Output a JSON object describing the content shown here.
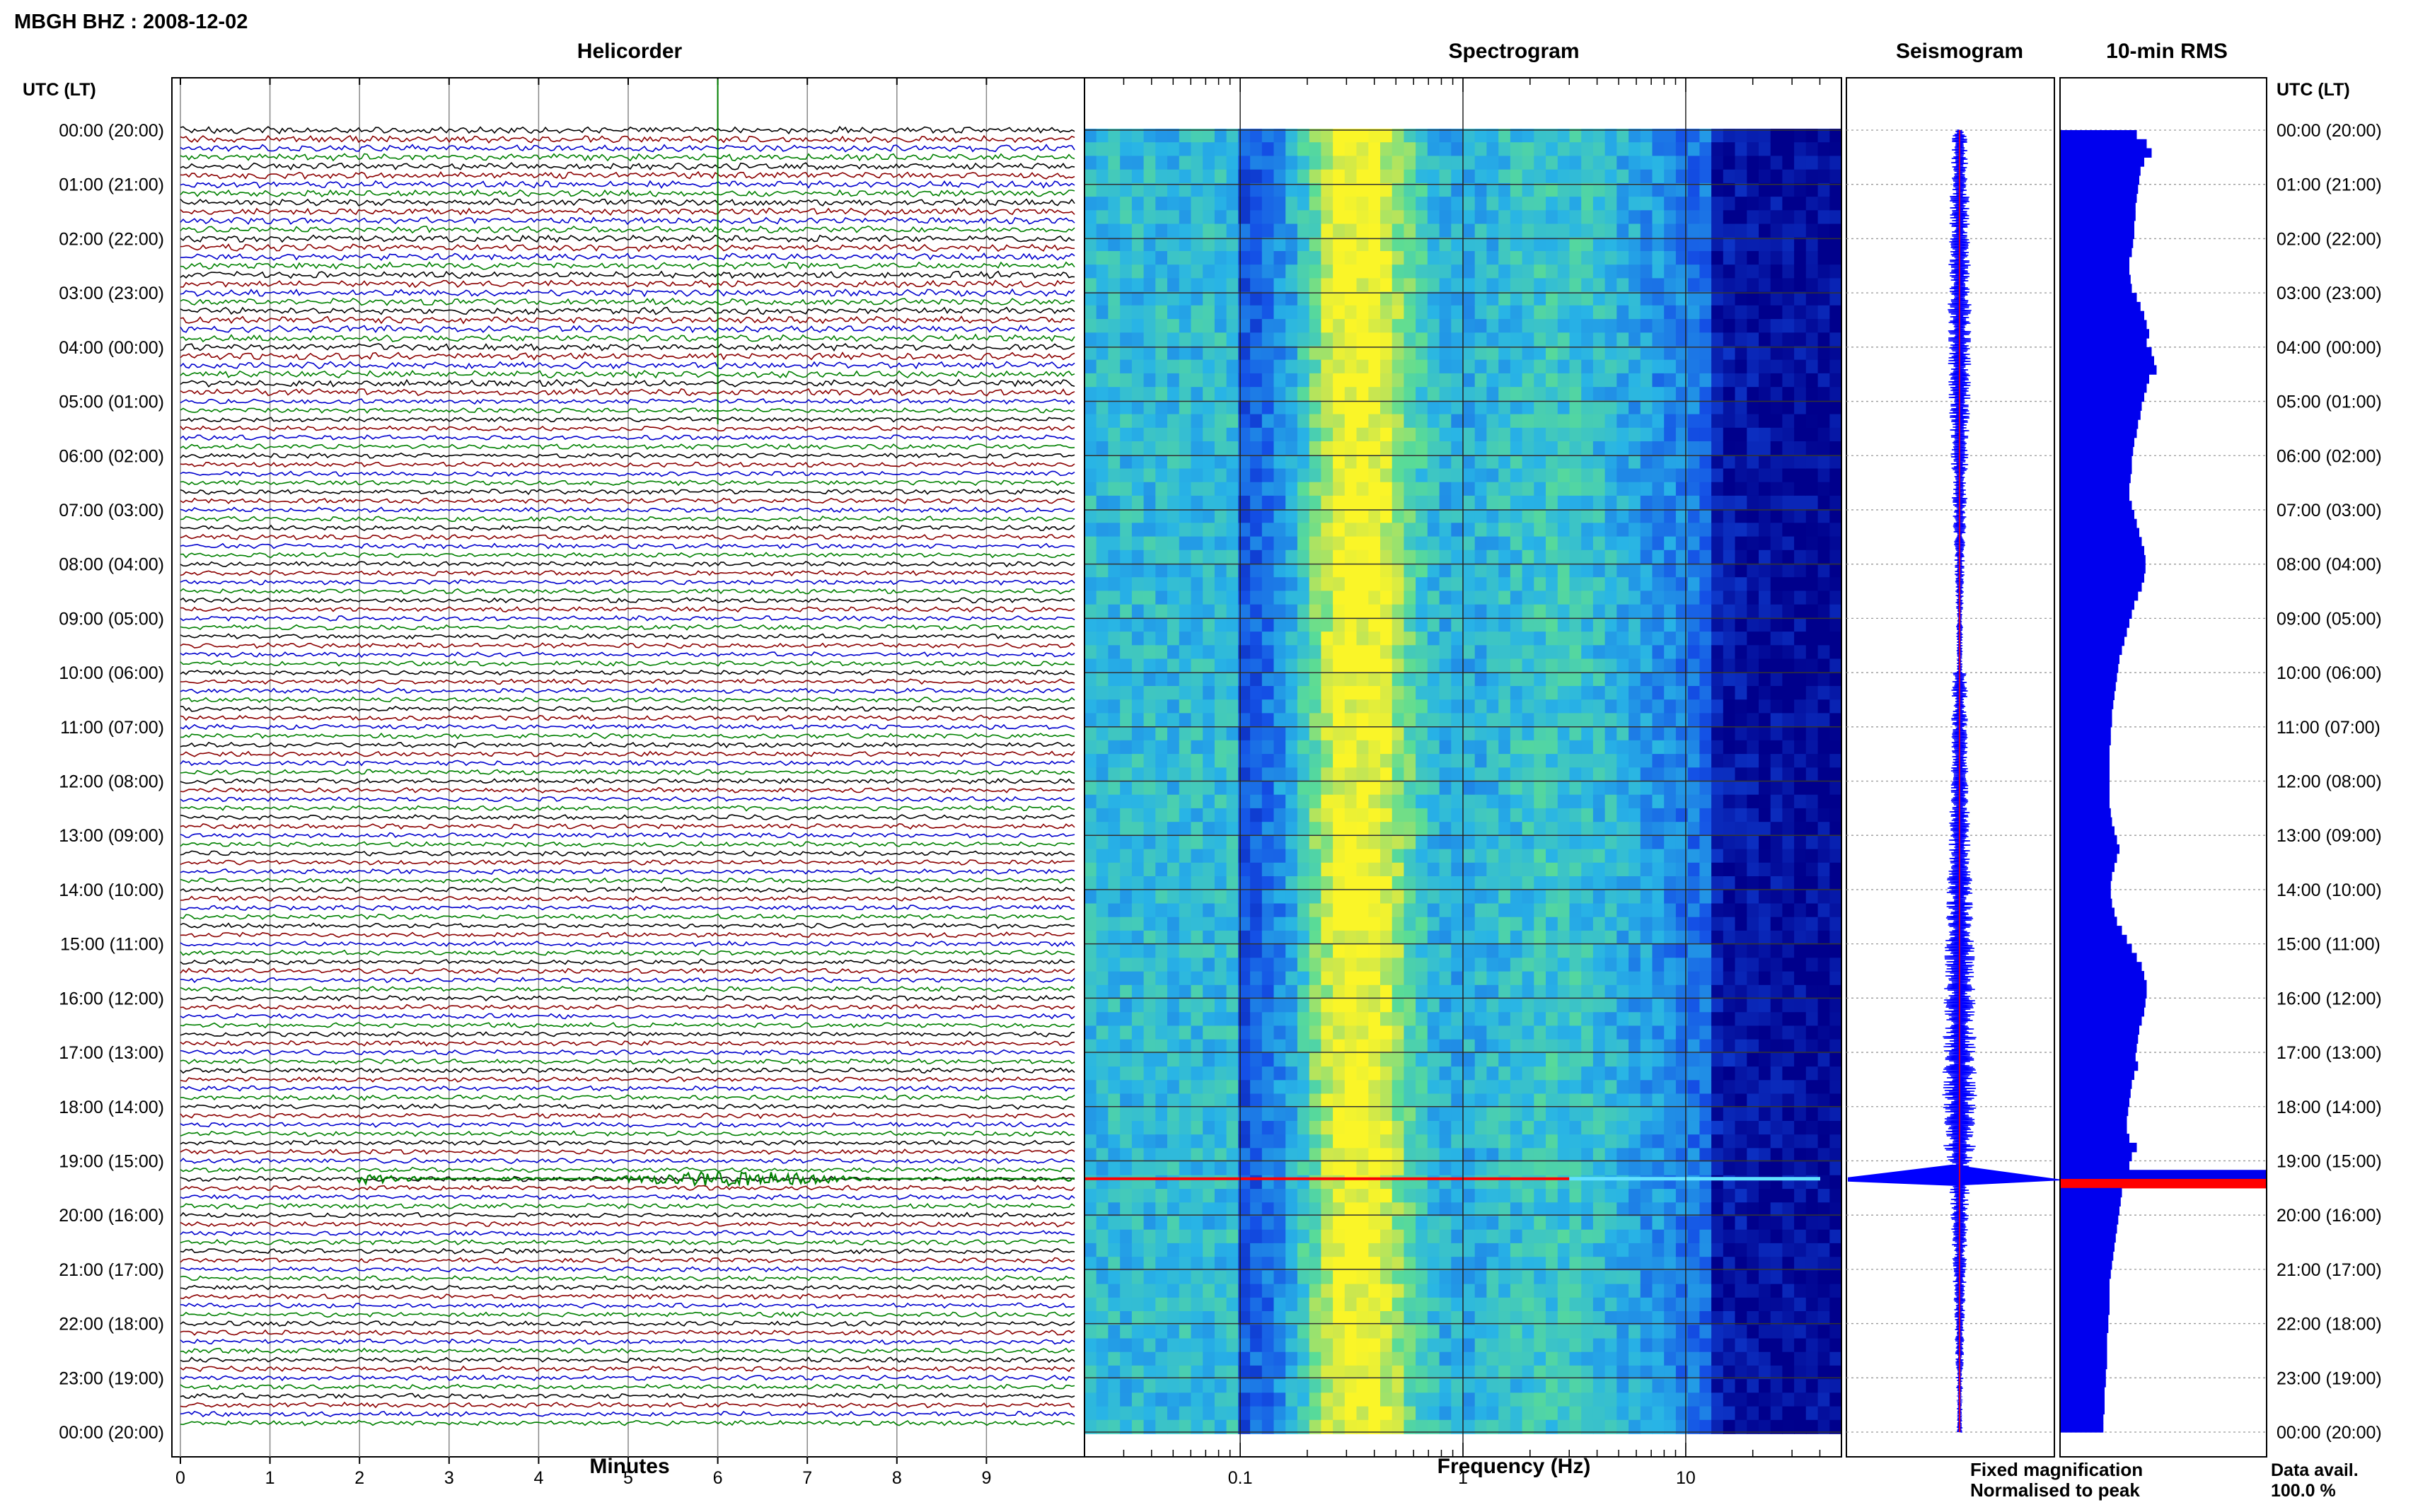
{
  "header": {
    "station": "MBGH BHZ : 2008-12-02"
  },
  "panels": {
    "helicorder": "Helicorder",
    "spectrogram": "Spectrogram",
    "seismogram": "Seismogram",
    "rms": "10-min RMS"
  },
  "time_axis": {
    "header_left": "UTC (LT)",
    "header_right": "UTC (LT)",
    "labels": [
      "00:00 (20:00)",
      "01:00 (21:00)",
      "02:00 (22:00)",
      "03:00 (23:00)",
      "04:00 (00:00)",
      "05:00 (01:00)",
      "06:00 (02:00)",
      "07:00 (03:00)",
      "08:00 (04:00)",
      "09:00 (05:00)",
      "10:00 (06:00)",
      "11:00 (07:00)",
      "12:00 (08:00)",
      "13:00 (09:00)",
      "14:00 (10:00)",
      "15:00 (11:00)",
      "16:00 (12:00)",
      "17:00 (13:00)",
      "18:00 (14:00)",
      "19:00 (15:00)",
      "20:00 (16:00)",
      "21:00 (17:00)",
      "22:00 (18:00)",
      "23:00 (19:00)",
      "00:00 (20:00)"
    ]
  },
  "legend": {
    "fixed": "Fixed magnification",
    "normalised": "Normalised to peak",
    "fixed_color": "#0000ff",
    "normalised_color": "#ff0000"
  },
  "availability": {
    "label": "Data avail.",
    "value": "100.0 %"
  },
  "colors": {
    "trace_cycle": [
      "#000000",
      "#8b0000",
      "#0000cd",
      "#008000"
    ],
    "rms_bar": "#0000ee",
    "rms_peak": "#ff0000",
    "event": "#ff0000"
  },
  "chart_data": [
    {
      "type": "line",
      "title": "Helicorder",
      "xlabel": "Minutes",
      "x_ticks": [
        "0",
        "1",
        "2",
        "3",
        "4",
        "5",
        "6",
        "7",
        "8",
        "9"
      ],
      "xlim": [
        0,
        10
      ],
      "rows_per_hour": 6,
      "row_minutes": 10,
      "hours": 24
    },
    {
      "type": "heatmap",
      "title": "Spectrogram",
      "xlabel": "Frequency (Hz)",
      "x_scale": "log",
      "x_ticks": [
        "0.1",
        "1",
        "10"
      ],
      "xlim": [
        0.02,
        50
      ],
      "high_energy_band_hz": [
        0.2,
        0.6
      ],
      "event_time": "19:20"
    },
    {
      "type": "line",
      "title": "Seismogram",
      "series": [
        {
          "name": "Fixed magnification",
          "color": "#0000ff"
        },
        {
          "name": "Normalised to peak",
          "color": "#ff0000"
        }
      ],
      "event_time": "19:20"
    },
    {
      "type": "bar",
      "title": "10-min RMS",
      "orientation": "horizontal",
      "bar_count": 144,
      "values": [
        6.2,
        7.0,
        7.4,
        6.8,
        6.5,
        6.4,
        6.3,
        6.2,
        6.1,
        6.1,
        6.0,
        6.0,
        5.9,
        5.8,
        5.6,
        5.6,
        5.7,
        5.8,
        6.2,
        6.5,
        6.8,
        7.0,
        7.2,
        7.0,
        7.4,
        7.6,
        7.8,
        7.2,
        7.0,
        6.8,
        6.6,
        6.5,
        6.3,
        6.2,
        6.0,
        5.9,
        5.8,
        5.8,
        5.7,
        5.6,
        5.6,
        5.8,
        6.0,
        6.2,
        6.4,
        6.6,
        6.8,
        6.9,
        6.9,
        6.8,
        6.6,
        6.3,
        6.0,
        5.8,
        5.6,
        5.4,
        5.2,
        5.0,
        4.8,
        4.7,
        4.6,
        4.5,
        4.4,
        4.3,
        4.2,
        4.2,
        4.1,
        4.1,
        4.0,
        4.0,
        4.0,
        4.0,
        4.0,
        4.0,
        4.0,
        4.1,
        4.2,
        4.4,
        4.6,
        4.8,
        4.6,
        4.4,
        4.2,
        4.1,
        4.1,
        4.2,
        4.4,
        4.6,
        5.0,
        5.4,
        5.8,
        6.2,
        6.6,
        6.8,
        7.0,
        7.0,
        6.9,
        6.8,
        6.6,
        6.4,
        6.3,
        6.2,
        6.1,
        6.3,
        6.0,
        5.8,
        5.7,
        5.6,
        5.5,
        5.4,
        5.4,
        5.6,
        6.2,
        5.8,
        5.6,
        30.0,
        5.2,
        5.0,
        4.9,
        4.8,
        4.7,
        4.6,
        4.5,
        4.4,
        4.3,
        4.2,
        4.1,
        4.0,
        4.0,
        4.0,
        4.0,
        3.9,
        3.9,
        3.8,
        3.8,
        3.8,
        3.8,
        3.7,
        3.7,
        3.6,
        3.6,
        3.6,
        3.5,
        3.5
      ],
      "peak_index": 116
    }
  ]
}
